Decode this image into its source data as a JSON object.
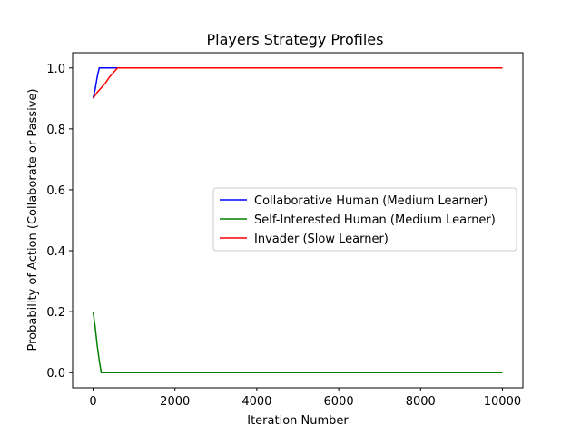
{
  "chart_data": {
    "type": "line",
    "title": "Players Strategy Profiles",
    "xlabel": "Iteration Number",
    "ylabel": "Probability of Action (Collaborate or Passive)",
    "xlim": [
      -500,
      10500
    ],
    "ylim": [
      -0.05,
      1.05
    ],
    "xticks": [
      0,
      2000,
      4000,
      6000,
      8000,
      10000
    ],
    "yticks": [
      0.0,
      0.2,
      0.4,
      0.6,
      0.8,
      1.0
    ],
    "xtick_labels": [
      "0",
      "2000",
      "4000",
      "6000",
      "8000",
      "10000"
    ],
    "ytick_labels": [
      "0.0",
      "0.2",
      "0.4",
      "0.6",
      "0.8",
      "1.0"
    ],
    "grid": false,
    "legend_position": "center-right",
    "series": [
      {
        "name": "Collaborative Human (Medium Learner)",
        "color": "#0000ff",
        "x": [
          0,
          50,
          100,
          150,
          200,
          10000
        ],
        "y": [
          0.9,
          0.93,
          0.97,
          1.0,
          1.0,
          1.0
        ]
      },
      {
        "name": "Self-Interested Human (Medium Learner)",
        "color": "#008000",
        "x": [
          0,
          50,
          100,
          150,
          200,
          10000
        ],
        "y": [
          0.2,
          0.15,
          0.09,
          0.04,
          0.0,
          0.0
        ]
      },
      {
        "name": "Invader (Slow Learner)",
        "color": "#ff0000",
        "x": [
          0,
          100,
          200,
          300,
          400,
          500,
          600,
          10000
        ],
        "y": [
          0.9,
          0.92,
          0.935,
          0.95,
          0.97,
          0.985,
          1.0,
          1.0
        ]
      }
    ]
  }
}
